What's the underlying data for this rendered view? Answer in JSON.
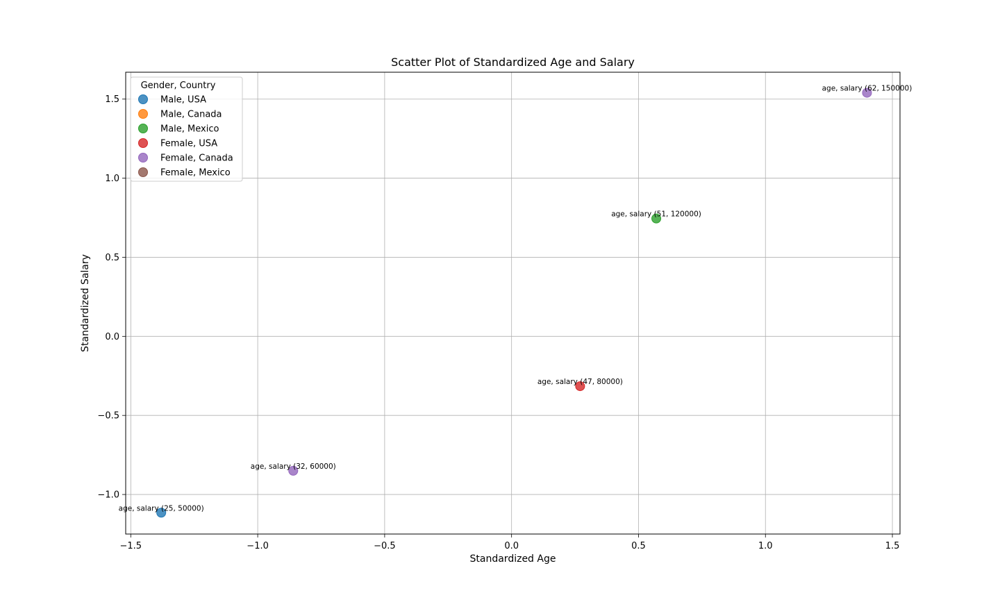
{
  "chart_data": {
    "type": "scatter",
    "title": "Scatter Plot of Standardized Age and Salary",
    "xlabel": "Standardized Age",
    "ylabel": "Standardized Salary",
    "xlim": [
      -1.52,
      1.53
    ],
    "ylim": [
      -1.25,
      1.67
    ],
    "xticks": [
      -1.5,
      -1.0,
      -0.5,
      0.0,
      0.5,
      1.0,
      1.5
    ],
    "xtick_labels": [
      "−1.5",
      "−1.0",
      "−0.5",
      "0.0",
      "0.5",
      "1.0",
      "1.5"
    ],
    "yticks": [
      -1.0,
      -0.5,
      0.0,
      0.5,
      1.0,
      1.5
    ],
    "ytick_labels": [
      "−1.0",
      "−0.5",
      "0.0",
      "0.5",
      "1.0",
      "1.5"
    ],
    "grid": true,
    "legend": {
      "title": "Gender, Country",
      "placement": "top-left",
      "entries": [
        {
          "label": "Male, USA",
          "color": "#1f77b4"
        },
        {
          "label": "Male, Canada",
          "color": "#ff7f0e"
        },
        {
          "label": "Male, Mexico",
          "color": "#2ca02c"
        },
        {
          "label": "Female, USA",
          "color": "#d62728"
        },
        {
          "label": "Female, Canada",
          "color": "#9467bd"
        },
        {
          "label": "Female, Mexico",
          "color": "#8c564b"
        }
      ]
    },
    "series": [
      {
        "name": "Male, USA",
        "color": "#1f77b4",
        "points": [
          {
            "x": -1.38,
            "y": -1.115,
            "label": "age, salary (25, 50000)"
          }
        ]
      },
      {
        "name": "Male, Canada",
        "color": "#ff7f0e",
        "points": []
      },
      {
        "name": "Male, Mexico",
        "color": "#2ca02c",
        "points": [
          {
            "x": 0.57,
            "y": 0.745,
            "label": "age, salary (51, 120000)"
          }
        ]
      },
      {
        "name": "Female, USA",
        "color": "#d62728",
        "points": [
          {
            "x": 0.27,
            "y": -0.315,
            "label": "age, salary (47, 80000)"
          }
        ]
      },
      {
        "name": "Female, Canada",
        "color": "#9467bd",
        "points": [
          {
            "x": -0.86,
            "y": -0.85,
            "label": "age, salary (32, 60000)"
          },
          {
            "x": 1.4,
            "y": 1.54,
            "label": "age, salary (62, 150000)"
          }
        ]
      },
      {
        "name": "Female, Mexico",
        "color": "#8c564b",
        "points": []
      }
    ]
  }
}
